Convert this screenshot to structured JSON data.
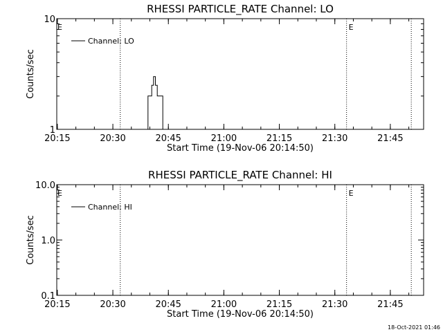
{
  "footer": {
    "timestamp": "18-Oct-2021 01:46"
  },
  "chart_data": [
    {
      "type": "line",
      "title": "RHESSI PARTICLE_RATE Channel: LO",
      "xlabel": "Start Time (19-Nov-06 20:14:50)",
      "ylabel": "Counts/sec",
      "y_scale": "log",
      "xlim": [
        "20:14:50",
        "21:54:00"
      ],
      "ylim": [
        1,
        10
      ],
      "x_ticks": [
        "20:15",
        "20:30",
        "20:45",
        "21:00",
        "21:15",
        "21:30",
        "21:45"
      ],
      "y_ticks": [
        "1",
        "10"
      ],
      "legend": {
        "position": "top-left",
        "entries": [
          "Channel: LO"
        ]
      },
      "event_markers": [
        {
          "time": "20:32:00",
          "label": ""
        },
        {
          "time": "21:33:10",
          "label": "E"
        },
        {
          "time": "21:50:40",
          "label": ""
        }
      ],
      "left_edge_label": "E",
      "series": [
        {
          "name": "Channel: LO",
          "x": [
            "20:39:30",
            "20:39:30",
            "20:40:30",
            "20:40:30",
            "20:41:00",
            "20:41:00",
            "20:41:30",
            "20:41:30",
            "20:42:00",
            "20:42:00",
            "20:42:30",
            "20:42:30",
            "20:43:30",
            "20:43:30"
          ],
          "y": [
            1,
            2,
            2,
            2.5,
            2.5,
            3,
            3,
            2.5,
            2.5,
            2,
            2,
            2,
            2,
            1
          ]
        }
      ]
    },
    {
      "type": "line",
      "title": "RHESSI PARTICLE_RATE Channel: HI",
      "xlabel": "Start Time (19-Nov-06 20:14:50)",
      "ylabel": "Counts/sec",
      "y_scale": "log",
      "xlim": [
        "20:14:50",
        "21:54:00"
      ],
      "ylim": [
        0.1,
        10
      ],
      "x_ticks": [
        "20:15",
        "20:30",
        "20:45",
        "21:00",
        "21:15",
        "21:30",
        "21:45"
      ],
      "y_ticks": [
        "0.1",
        "1.0",
        "10.0"
      ],
      "legend": {
        "position": "top-left",
        "entries": [
          "Channel: HI"
        ]
      },
      "event_markers": [
        {
          "time": "20:32:00",
          "label": ""
        },
        {
          "time": "21:33:10",
          "label": "E"
        },
        {
          "time": "21:50:40",
          "label": ""
        }
      ],
      "left_edge_label": "E",
      "series": [
        {
          "name": "Channel: HI",
          "x": [],
          "y": []
        }
      ]
    }
  ]
}
